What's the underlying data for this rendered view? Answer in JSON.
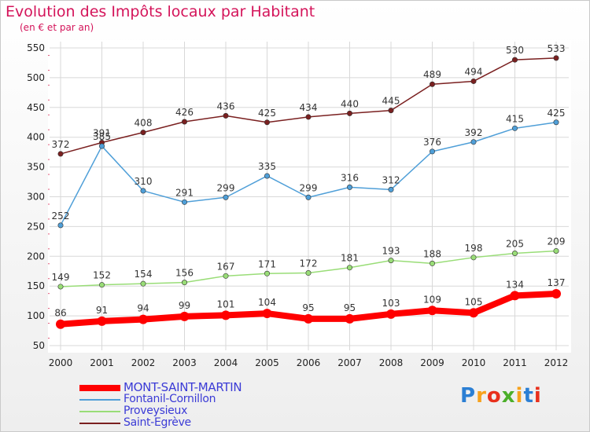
{
  "header": {
    "title": "Evolution des Impôts locaux par Habitant",
    "subtitle": "(en € et par an)"
  },
  "logo": {
    "text": "Proxiti",
    "colors": [
      "#2b7fd4",
      "#f7a21c",
      "#e8301c",
      "#4caf2a",
      "#f7a21c",
      "#2b7fd4",
      "#e8301c"
    ]
  },
  "chart_data": {
    "type": "line",
    "title": "Evolution des Impôts locaux par Habitant",
    "subtitle": "(en € et par an)",
    "categories": [
      "2000",
      "2001",
      "2002",
      "2003",
      "2004",
      "2005",
      "2006",
      "2007",
      "2008",
      "2009",
      "2010",
      "2011",
      "2012"
    ],
    "ylim": [
      50,
      550
    ],
    "yticks": [
      50,
      100,
      150,
      200,
      250,
      300,
      350,
      400,
      450,
      500,
      550
    ],
    "grid": true,
    "legend": "bottom-left",
    "series": [
      {
        "name": "MONT-SAINT-MARTIN",
        "color": "#ff0000",
        "emphasis": true,
        "values": [
          86,
          91,
          94,
          99,
          101,
          104,
          95,
          95,
          103,
          109,
          105,
          134,
          137
        ]
      },
      {
        "name": "Fontanil-Cornillon",
        "color": "#4f9fd8",
        "values": [
          252,
          385,
          310,
          291,
          299,
          335,
          299,
          316,
          312,
          376,
          392,
          415,
          425
        ]
      },
      {
        "name": "Proveysieux",
        "color": "#99dd77",
        "values": [
          149,
          152,
          154,
          156,
          167,
          171,
          172,
          181,
          193,
          188,
          198,
          205,
          209
        ]
      },
      {
        "name": "Saint-Egrève",
        "color": "#7a2020",
        "values": [
          372,
          391,
          408,
          426,
          436,
          425,
          434,
          440,
          445,
          489,
          494,
          530,
          533
        ]
      }
    ]
  }
}
